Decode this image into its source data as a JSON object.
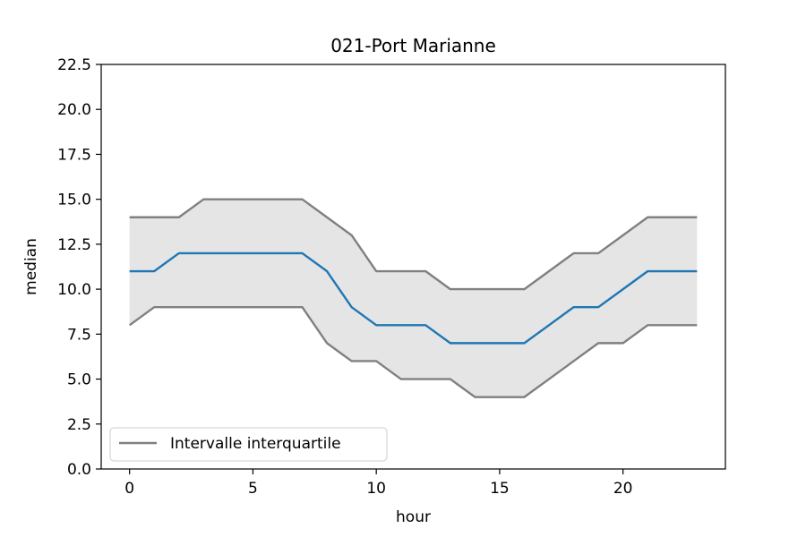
{
  "chart_data": {
    "type": "line",
    "title": "021-Port Marianne",
    "xlabel": "hour",
    "ylabel": "median",
    "xlim": [
      -1.15,
      24.15
    ],
    "ylim": [
      0,
      22.5
    ],
    "xticks": [
      "0",
      "5",
      "10",
      "15",
      "20"
    ],
    "yticks": [
      "0.0",
      "2.5",
      "5.0",
      "7.5",
      "10.0",
      "12.5",
      "15.0",
      "17.5",
      "20.0",
      "22.5"
    ],
    "grid": false,
    "legend": {
      "placement": "lower-left",
      "entries": [
        "Intervalle interquartile"
      ]
    },
    "x": [
      0,
      1,
      2,
      3,
      4,
      5,
      6,
      7,
      8,
      9,
      10,
      11,
      12,
      13,
      14,
      15,
      16,
      17,
      18,
      19,
      20,
      21,
      22,
      23
    ],
    "series": [
      {
        "name": "Intervalle interquartile",
        "role": "upper",
        "color": "#808080",
        "values": [
          14,
          14,
          14,
          15,
          15,
          15,
          15,
          15,
          14,
          13,
          11,
          11,
          11,
          10,
          10,
          10,
          10,
          11,
          12,
          12,
          13,
          14,
          14,
          14
        ]
      },
      {
        "role": "median",
        "color": "#1f77b4",
        "values": [
          11,
          11,
          12,
          12,
          12,
          12,
          12,
          12,
          11,
          9,
          8,
          8,
          8,
          7,
          7,
          7,
          7,
          8,
          9,
          9,
          10,
          11,
          11,
          11
        ]
      },
      {
        "role": "lower",
        "color": "#808080",
        "values": [
          8,
          9,
          9,
          9,
          9,
          9,
          9,
          9,
          7,
          6,
          6,
          5,
          5,
          5,
          4,
          4,
          4,
          5,
          6,
          7,
          7,
          8,
          8,
          8
        ]
      }
    ],
    "fill_color": "#e5e5e5"
  }
}
